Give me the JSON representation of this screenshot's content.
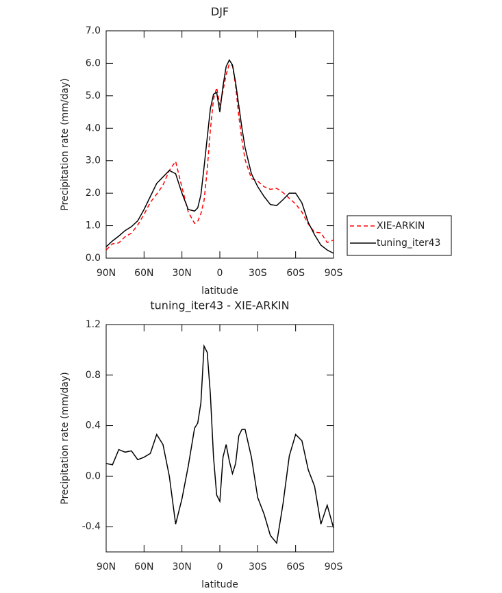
{
  "chart_data": [
    {
      "type": "line",
      "title": "DJF",
      "xlabel": "latitude",
      "ylabel": "Precipitation rate (mm/day)",
      "x": [
        90,
        85,
        80,
        75,
        70,
        65,
        60,
        55,
        50,
        45,
        40,
        35,
        30,
        25,
        20,
        17.5,
        15,
        12.5,
        10,
        7.5,
        5,
        2.5,
        0,
        -2.5,
        -5,
        -7.5,
        -10,
        -12.5,
        -15,
        -17.5,
        -20,
        -25,
        -30,
        -35,
        -40,
        -45,
        -50,
        -55,
        -60,
        -65,
        -70,
        -75,
        -80,
        -85,
        -90
      ],
      "series": [
        {
          "name": "XIE-ARKIN",
          "color": "#ff0000",
          "linestyle": "dashed",
          "values": [
            0.25,
            0.44,
            0.47,
            0.66,
            0.77,
            1.02,
            1.35,
            1.72,
            1.97,
            2.25,
            2.7,
            2.98,
            2.18,
            1.42,
            1.07,
            1.13,
            1.37,
            1.77,
            2.72,
            3.95,
            4.9,
            5.25,
            4.7,
            5.15,
            5.65,
            5.98,
            5.93,
            5.3,
            4.38,
            3.63,
            3.03,
            2.45,
            2.37,
            2.2,
            2.12,
            2.15,
            2.02,
            1.84,
            1.67,
            1.42,
            1.05,
            0.8,
            0.78,
            0.48,
            0.56
          ]
        },
        {
          "name": "tuning_iter43",
          "color": "#000000",
          "linestyle": "solid",
          "values": [
            0.35,
            0.53,
            0.68,
            0.85,
            0.97,
            1.15,
            1.5,
            1.9,
            2.3,
            2.5,
            2.7,
            2.6,
            2.0,
            1.5,
            1.45,
            1.55,
            1.95,
            2.8,
            3.7,
            4.6,
            5.05,
            5.1,
            4.5,
            5.3,
            5.9,
            6.1,
            5.95,
            5.4,
            4.7,
            4.0,
            3.4,
            2.6,
            2.2,
            1.9,
            1.65,
            1.62,
            1.8,
            2.0,
            2.0,
            1.7,
            1.1,
            0.72,
            0.4,
            0.25,
            0.15
          ]
        }
      ],
      "xlim": [
        90,
        -90
      ],
      "xticks": [
        {
          "value": 90,
          "label": "90N"
        },
        {
          "value": 60,
          "label": "60N"
        },
        {
          "value": 30,
          "label": "30N"
        },
        0,
        {
          "value": -30,
          "label": "30S"
        },
        {
          "value": -60,
          "label": "60S"
        },
        {
          "value": -90,
          "label": "90S"
        }
      ],
      "ylim": [
        0,
        7
      ],
      "yticks": [
        {
          "value": 0,
          "label": "0.0"
        },
        {
          "value": 1,
          "label": "1.0"
        },
        {
          "value": 2,
          "label": "2.0"
        },
        {
          "value": 3,
          "label": "3.0"
        },
        {
          "value": 4,
          "label": "4.0"
        },
        {
          "value": 5,
          "label": "5.0"
        },
        {
          "value": 6,
          "label": "6.0"
        },
        {
          "value": 7,
          "label": "7.0"
        }
      ],
      "legend": "right"
    },
    {
      "type": "line",
      "title": "tuning_iter43 - XIE-ARKIN",
      "xlabel": "latitude",
      "ylabel": "Precipitation rate (mm/day)",
      "x": [
        90,
        85,
        80,
        75,
        70,
        65,
        60,
        55,
        50,
        45,
        40,
        35,
        30,
        25,
        20,
        17.5,
        15,
        12.5,
        10,
        7.5,
        5,
        2.5,
        0,
        -2.5,
        -5,
        -7.5,
        -10,
        -12.5,
        -15,
        -17.5,
        -20,
        -25,
        -30,
        -35,
        -40,
        -45,
        -50,
        -55,
        -60,
        -65,
        -70,
        -75,
        -80,
        -85,
        -90
      ],
      "values": [
        0.1,
        0.09,
        0.21,
        0.19,
        0.2,
        0.13,
        0.15,
        0.18,
        0.33,
        0.25,
        0.0,
        -0.38,
        -0.18,
        0.08,
        0.38,
        0.42,
        0.58,
        1.03,
        0.98,
        0.65,
        0.15,
        -0.15,
        -0.2,
        0.15,
        0.25,
        0.12,
        0.02,
        0.1,
        0.32,
        0.37,
        0.37,
        0.15,
        -0.17,
        -0.3,
        -0.47,
        -0.53,
        -0.22,
        0.16,
        0.33,
        0.28,
        0.05,
        -0.08,
        -0.38,
        -0.23,
        -0.41
      ],
      "color": "#000000",
      "xlim": [
        90,
        -90
      ],
      "xticks": [
        {
          "value": 90,
          "label": "90N"
        },
        {
          "value": 60,
          "label": "60N"
        },
        {
          "value": 30,
          "label": "30N"
        },
        0,
        {
          "value": -30,
          "label": "30S"
        },
        {
          "value": -60,
          "label": "60S"
        },
        {
          "value": -90,
          "label": "90S"
        }
      ],
      "ylim": [
        -0.6,
        1.2
      ],
      "yticks": [
        1.2,
        0.8,
        0.4,
        {
          "value": 0,
          "label": "0.0"
        },
        -0.4
      ]
    }
  ]
}
